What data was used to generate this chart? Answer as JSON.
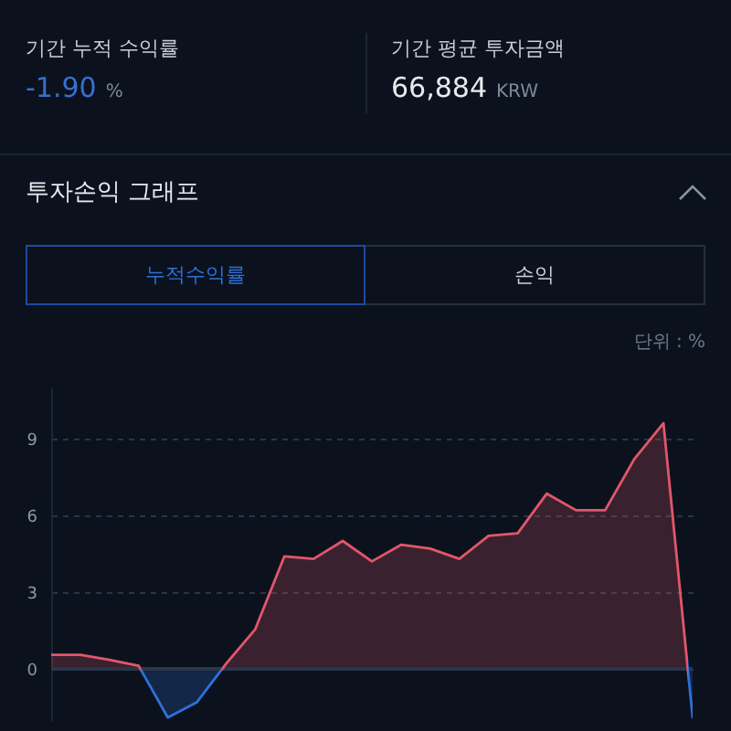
{
  "chart_data": {
    "type": "area",
    "title": "투자손익 그래프",
    "ylabel": "단위 : %",
    "annotations": [
      "기간 누적 수익률",
      "-1.90 %",
      "기간 평균 투자금액",
      "66,884 KRW",
      "누적수익률",
      "손익"
    ],
    "categories": [
      null,
      null,
      null,
      null,
      null,
      null,
      null,
      null,
      null,
      null,
      null,
      null,
      null,
      null,
      null,
      null,
      null,
      null,
      null,
      null,
      null,
      null,
      null
    ],
    "series": [
      {
        "values": [
          0.55,
          0.55,
          0.35,
          0.12,
          -1.9,
          -1.3,
          0.2,
          1.55,
          4.4,
          4.3,
          5.0,
          4.2,
          4.85,
          4.7,
          4.3,
          5.2,
          5.3,
          6.85,
          6.2,
          6.2,
          8.2,
          9.6,
          -1.9
        ],
        "colors": [
          "#e2566a",
          "#e2566a",
          "#e2566a",
          "#e2566a",
          "#2f6fd8",
          "#2f6fd8",
          "#e2566a",
          "#e2566a",
          "#e2566a",
          "#e2566a",
          "#e2566a",
          "#e2566a",
          "#e2566a",
          "#e2566a",
          "#e2566a",
          "#e2566a",
          "#e2566a",
          "#e2566a",
          "#e2566a",
          "#e2566a",
          "#e2566a",
          "#e2566a",
          "#2f6fd8"
        ]
      }
    ],
    "ylim": [
      -2,
      11
    ],
    "yticks": [
      0,
      3,
      6,
      9
    ],
    "grid": "y",
    "ref_lines": [
      {
        "axis": "y",
        "value": 0,
        "color": "#2a364a"
      }
    ]
  }
}
